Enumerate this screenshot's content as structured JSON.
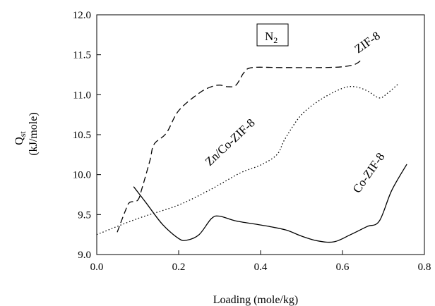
{
  "chart_data": {
    "type": "line",
    "title": "",
    "xlabel": "Loading (mole/kg)",
    "ylabel_main": "Q",
    "ylabel_sub": "st",
    "ylabel_units": "(kJ/mole)",
    "xlim": [
      0.0,
      0.8
    ],
    "ylim": [
      9.0,
      12.0
    ],
    "xticks": [
      "0.0",
      "0.2",
      "0.4",
      "0.6",
      "0.8"
    ],
    "yticks": [
      "9.0",
      "9.5",
      "10.0",
      "10.5",
      "11.0",
      "11.5",
      "12.0"
    ],
    "grid": false,
    "legend": "none",
    "annotation_box": {
      "main": "N",
      "sub": "2"
    },
    "series": [
      {
        "name": "ZIF-8",
        "style": "dashed",
        "color": "#000000",
        "x": [
          0.05,
          0.07,
          0.08,
          0.1,
          0.11,
          0.13,
          0.14,
          0.17,
          0.2,
          0.25,
          0.28,
          0.3,
          0.32,
          0.34,
          0.36,
          0.38,
          0.45,
          0.55,
          0.6,
          0.63,
          0.645
        ],
        "y": [
          9.28,
          9.55,
          9.65,
          9.68,
          9.82,
          10.18,
          10.38,
          10.52,
          10.8,
          11.02,
          11.1,
          11.12,
          11.1,
          11.12,
          11.28,
          11.34,
          11.34,
          11.34,
          11.35,
          11.38,
          11.43
        ]
      },
      {
        "name": "Zn/Co-ZIF-8",
        "style": "dotted",
        "color": "#000000",
        "x": [
          0.0,
          0.1,
          0.2,
          0.28,
          0.35,
          0.4,
          0.44,
          0.46,
          0.5,
          0.55,
          0.6,
          0.63,
          0.66,
          0.69,
          0.71,
          0.735
        ],
        "y": [
          9.25,
          9.45,
          9.62,
          9.82,
          10.02,
          10.12,
          10.25,
          10.45,
          10.75,
          10.95,
          11.08,
          11.1,
          11.05,
          10.96,
          11.02,
          11.13
        ]
      },
      {
        "name": "Co-ZIF-8",
        "style": "solid",
        "color": "#000000",
        "x": [
          0.09,
          0.12,
          0.16,
          0.2,
          0.22,
          0.25,
          0.28,
          0.3,
          0.34,
          0.4,
          0.46,
          0.5,
          0.54,
          0.58,
          0.62,
          0.66,
          0.69,
          0.72,
          0.757
        ],
        "y": [
          9.85,
          9.65,
          9.38,
          9.2,
          9.18,
          9.25,
          9.45,
          9.48,
          9.42,
          9.37,
          9.31,
          9.23,
          9.17,
          9.16,
          9.25,
          9.35,
          9.42,
          9.8,
          10.13
        ]
      }
    ]
  }
}
